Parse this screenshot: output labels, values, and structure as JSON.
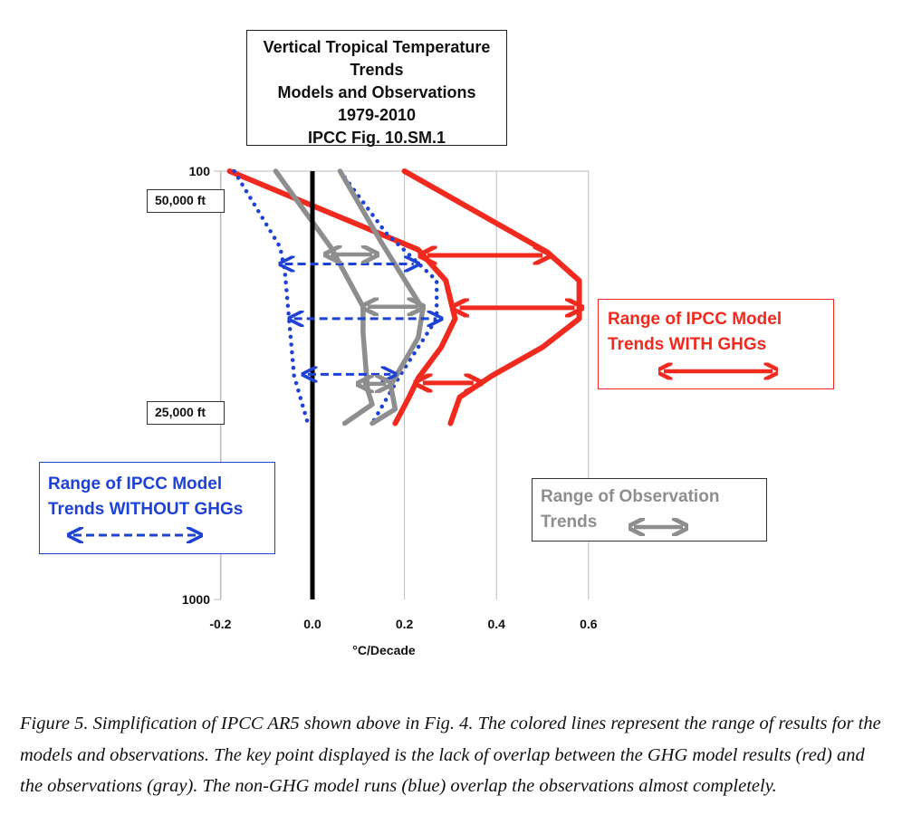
{
  "chart_data": {
    "type": "line",
    "title_lines": [
      "Vertical Tropical Temperature",
      "Trends",
      "Models and Observations",
      "1979-2010",
      "IPCC Fig. 10.SM.1"
    ],
    "xlabel": "°C/Decade",
    "xlim": [
      -0.2,
      0.6
    ],
    "x_ticks": [
      -0.2,
      0.0,
      0.2,
      0.4,
      0.6
    ],
    "x_tick_labels": [
      "-0.2",
      "0.0",
      "0.2",
      "0.4",
      "0.6"
    ],
    "y_tick_labels": [
      "100",
      "1000"
    ],
    "y_scale": "pressure (hPa), 100 at top to 1000 at bottom",
    "altitude_labels": [
      "50,000 ft",
      "25,000 ft"
    ],
    "grid": "vertical lines at each x tick",
    "zero_line": {
      "x": 0.0,
      "color": "#000000"
    },
    "series": [
      {
        "group": "models-with-ghg",
        "style": "solid",
        "color": "#f02a1e",
        "points": [
          [
            -0.18,
            100
          ],
          [
            0.23,
            265
          ],
          [
            0.29,
            330
          ],
          [
            0.31,
            410
          ],
          [
            0.28,
            470
          ],
          [
            0.23,
            535
          ],
          [
            0.21,
            575
          ],
          [
            0.18,
            630
          ]
        ]
      },
      {
        "group": "models-with-ghg",
        "style": "solid",
        "color": "#f02a1e",
        "points": [
          [
            0.2,
            100
          ],
          [
            0.51,
            270
          ],
          [
            0.58,
            330
          ],
          [
            0.58,
            410
          ],
          [
            0.5,
            470
          ],
          [
            0.39,
            530
          ],
          [
            0.32,
            575
          ],
          [
            0.3,
            630
          ]
        ]
      },
      {
        "group": "models-without-ghg",
        "style": "dotted",
        "color": "#1f42d6",
        "points": [
          [
            -0.17,
            100
          ],
          [
            -0.07,
            260
          ],
          [
            -0.06,
            310
          ],
          [
            -0.05,
            420
          ],
          [
            -0.04,
            530
          ],
          [
            -0.01,
            630
          ]
        ]
      },
      {
        "group": "models-without-ghg",
        "style": "dotted",
        "color": "#1f42d6",
        "points": [
          [
            0.06,
            100
          ],
          [
            0.16,
            230
          ],
          [
            0.27,
            330
          ],
          [
            0.27,
            410
          ],
          [
            0.19,
            530
          ],
          [
            0.13,
            630
          ]
        ]
      },
      {
        "group": "observations",
        "style": "solid",
        "color": "#8e8e8e",
        "points": [
          [
            -0.08,
            100
          ],
          [
            0.04,
            260
          ],
          [
            0.11,
            385
          ],
          [
            0.11,
            440
          ],
          [
            0.12,
            560
          ],
          [
            0.13,
            590
          ],
          [
            0.07,
            630
          ]
        ]
      },
      {
        "group": "observations",
        "style": "solid",
        "color": "#8e8e8e",
        "points": [
          [
            0.06,
            100
          ],
          [
            0.15,
            250
          ],
          [
            0.24,
            390
          ],
          [
            0.23,
            450
          ],
          [
            0.17,
            550
          ],
          [
            0.18,
            600
          ],
          [
            0.13,
            630
          ]
        ]
      }
    ],
    "range_arrows": [
      {
        "group": "models-with-ghg",
        "x": [
          0.25,
          0.5
        ],
        "y": 277
      },
      {
        "group": "models-with-ghg",
        "x": [
          0.32,
          0.57
        ],
        "y": 387
      },
      {
        "group": "models-with-ghg",
        "x": [
          0.24,
          0.35
        ],
        "y": 545
      },
      {
        "group": "models-without-ghg",
        "x": [
          -0.06,
          0.22
        ],
        "y": 295
      },
      {
        "group": "models-without-ghg",
        "x": [
          -0.04,
          0.27
        ],
        "y": 410
      },
      {
        "group": "models-without-ghg",
        "x": [
          -0.01,
          0.17
        ],
        "y": 527
      },
      {
        "group": "observations",
        "x": [
          0.04,
          0.13
        ],
        "y": 275
      },
      {
        "group": "observations",
        "x": [
          0.12,
          0.23
        ],
        "y": 385
      },
      {
        "group": "observations",
        "x": [
          0.11,
          0.16
        ],
        "y": 547
      }
    ],
    "legend": [
      {
        "group": "models-with-ghg",
        "lines": [
          "Range of IPCC Model",
          "Trends WITH GHGs"
        ],
        "color": "#f02a1e",
        "placement": "right"
      },
      {
        "group": "models-without-ghg",
        "lines": [
          "Range of IPCC Model",
          "Trends WITHOUT GHGs"
        ],
        "color": "#1f42d6",
        "placement": "bottom-left"
      },
      {
        "group": "observations",
        "lines": [
          "Range of Observation",
          "Trends"
        ],
        "color": "#8e8e8e",
        "placement": "bottom-right"
      }
    ]
  },
  "caption": "Figure 5.  Simplification of IPCC AR5 shown above in Fig. 4.  The colored lines represent the range of results for the models and observations.  The key point displayed is the lack of overlap between the GHG model results (red) and the observations (gray).  The non-GHG model runs (blue) overlap the observations almost completely."
}
